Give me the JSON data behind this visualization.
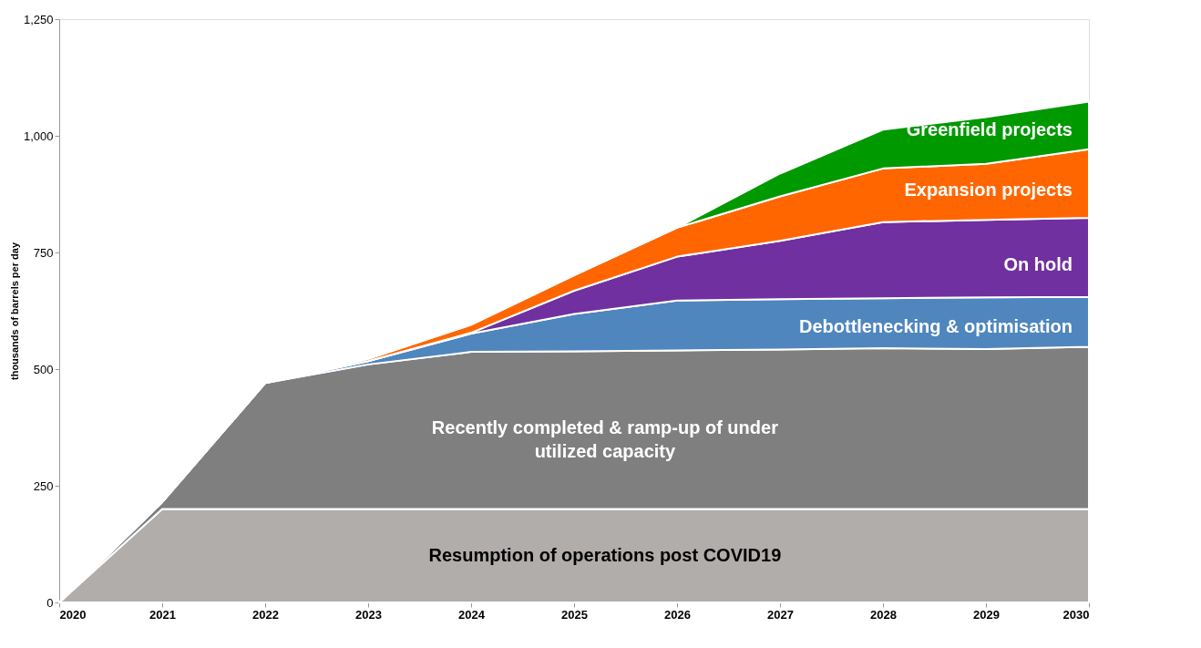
{
  "chart_data": {
    "type": "area",
    "stacked": true,
    "ylabel": "thousands of barrels per day",
    "x": [
      2020,
      2021,
      2022,
      2023,
      2024,
      2025,
      2026,
      2027,
      2028,
      2029,
      2030
    ],
    "xlim": [
      2020,
      2030
    ],
    "xticks": [
      2020,
      2021,
      2022,
      2023,
      2024,
      2025,
      2026,
      2027,
      2028,
      2029,
      2030
    ],
    "ylim": [
      0,
      1250
    ],
    "yticks": [
      0,
      250,
      500,
      750,
      {
        "value": 1000,
        "label": "1,000"
      },
      {
        "value": 1250,
        "label": "1,250"
      }
    ],
    "series": [
      {
        "name": "Resumption of operations post COVID19",
        "color": "#b0adab",
        "values": [
          0,
          200,
          200,
          200,
          200,
          200,
          200,
          200,
          200,
          200,
          200
        ]
      },
      {
        "name": "Recently completed & ramp-up of under utilized capacity",
        "color": "#7f7f7f",
        "values": [
          0,
          15,
          270,
          310,
          337,
          338,
          340,
          342,
          345,
          343,
          348
        ]
      },
      {
        "name": "Debottlenecking & optimisation",
        "color": "#4f86bd",
        "values": [
          0,
          0,
          0,
          7,
          39,
          80,
          107,
          108,
          107,
          111,
          107
        ]
      },
      {
        "name": "On hold",
        "color": "#7030a0",
        "values": [
          0,
          0,
          0,
          0,
          2,
          50,
          94,
          125,
          163,
          166,
          169
        ]
      },
      {
        "name": "Expansion projects",
        "color": "#ff6600",
        "values": [
          0,
          0,
          0,
          5,
          17,
          33,
          62,
          95,
          115,
          120,
          147
        ]
      },
      {
        "name": "Greenfield projects",
        "color": "#009900",
        "values": [
          0,
          0,
          0,
          0,
          0,
          0,
          0,
          49,
          83,
          100,
          102
        ]
      }
    ]
  }
}
